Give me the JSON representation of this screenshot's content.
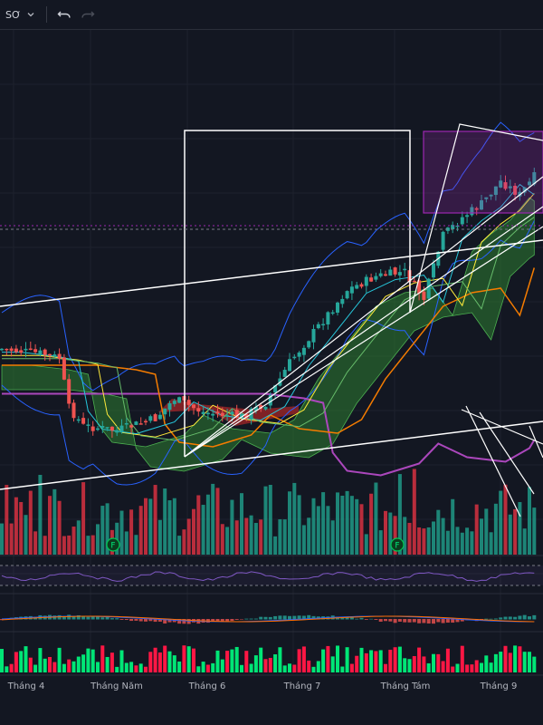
{
  "toolbar": {
    "timeframe_label": "SƠ",
    "undo": "undo-icon",
    "redo": "redo-icon"
  },
  "colors": {
    "background": "#131722",
    "up": "#26a69a",
    "down": "#ef5350",
    "vol_up": "#22ab94",
    "vol_down": "#f23645",
    "ema_orange": "#f57c00",
    "ma_purple": "#ab47bc",
    "cloud_green": "#2e7d32",
    "cloud_red": "#c62828",
    "bb_blue": "#2962ff",
    "drawing_white": "#ffffff"
  },
  "chart_data": {
    "type": "candlestick",
    "x_axis_labels": [
      "Tháng 4",
      "Tháng Năm",
      "Tháng 6",
      "Tháng 7",
      "Tháng Tám",
      "Tháng 9"
    ],
    "indicators": [
      "Bollinger Bands",
      "Ichimoku Cloud",
      "Moving averages",
      "Volume",
      "RSI",
      "MACD",
      "Volume oscillator"
    ],
    "grid": true,
    "event_markers": [
      "F",
      "F"
    ]
  }
}
